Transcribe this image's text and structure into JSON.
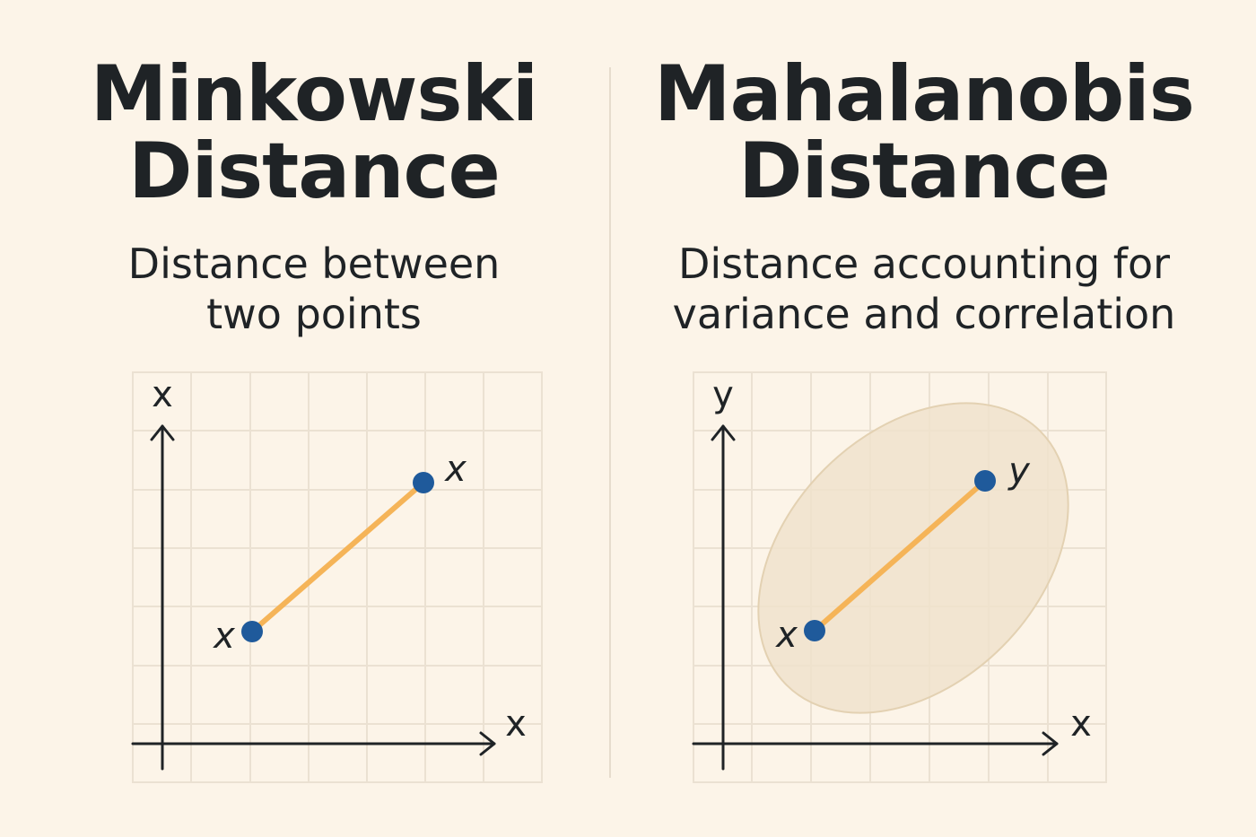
{
  "left_panel": {
    "title_line1": "Minkowski",
    "title_line2": "Distance",
    "subtitle_line1": "Distance between",
    "subtitle_line2": "two points",
    "axis_x_label": "x",
    "axis_y_label": "x",
    "point_a_label": "x",
    "point_b_label": "x"
  },
  "right_panel": {
    "title_line1": "Mahalanobis",
    "title_line2": "Distance",
    "subtitle_line1": "Distance accounting for",
    "subtitle_line2": "variance and correlation",
    "axis_x_label": "x",
    "axis_y_label": "y",
    "point_a_label": "x",
    "point_b_label": "y"
  },
  "colors": {
    "background": "#fcf4e8",
    "text": "#1f2326",
    "line_segment": "#f5b458",
    "point": "#1f5a9b",
    "ellipse_fill": "#f0e2cc"
  }
}
